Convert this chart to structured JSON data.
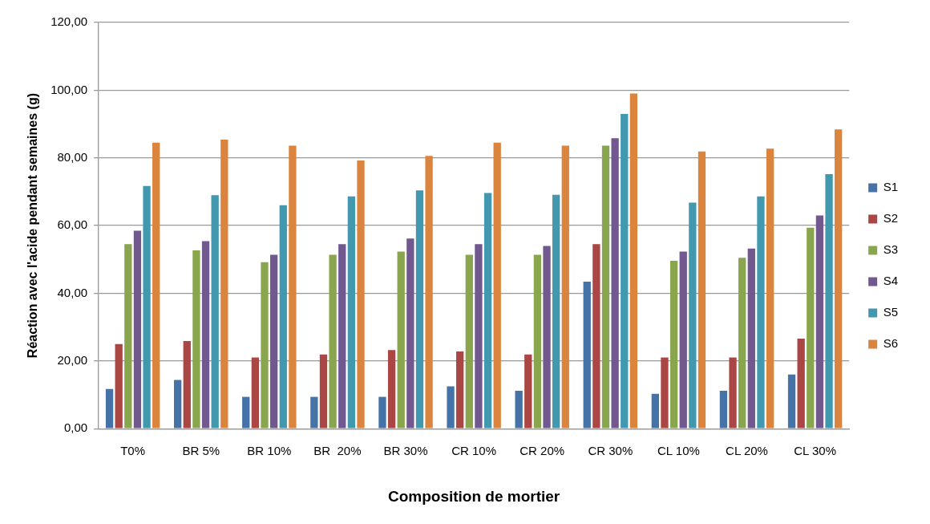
{
  "chart_data": {
    "type": "bar",
    "xlabel": "Composition de mortier",
    "ylabel": "Réaction avec l'acide pendant semaines (g)",
    "categories": [
      "T0%",
      "BR 5%",
      "BR 10%",
      "BR  20%",
      "BR 30%",
      "CR 10%",
      "CR 20%",
      "CR 30%",
      "CL 10%",
      "CL 20%",
      "CL 30%"
    ],
    "series": [
      {
        "name": "S1",
        "color": "#4572a7",
        "values": [
          11.7,
          14.4,
          9.4,
          9.4,
          9.4,
          12.5,
          11.2,
          43.4,
          10.3,
          11.2,
          16.0
        ]
      },
      {
        "name": "S2",
        "color": "#aa4643",
        "values": [
          25.0,
          25.9,
          21.0,
          21.9,
          23.2,
          22.8,
          21.9,
          54.5,
          21.0,
          21.0,
          26.6
        ]
      },
      {
        "name": "S3",
        "color": "#89a54e",
        "values": [
          54.5,
          52.7,
          49.2,
          51.4,
          52.3,
          51.4,
          51.4,
          83.6,
          49.6,
          50.5,
          59.4
        ]
      },
      {
        "name": "S4",
        "color": "#71588f",
        "values": [
          58.5,
          55.4,
          51.4,
          54.5,
          56.2,
          54.5,
          54.0,
          85.8,
          52.3,
          53.2,
          63.0
        ]
      },
      {
        "name": "S5",
        "color": "#4198af",
        "values": [
          71.7,
          69.0,
          66.0,
          68.6,
          70.4,
          69.6,
          69.1,
          93.0,
          66.8,
          68.6,
          75.2
        ]
      },
      {
        "name": "S6",
        "color": "#db843d",
        "values": [
          84.5,
          85.4,
          83.6,
          79.2,
          80.6,
          84.5,
          83.6,
          99.0,
          81.9,
          82.7,
          88.4
        ]
      }
    ],
    "ylim": [
      0,
      120
    ],
    "yticks": [
      {
        "value": 0,
        "label": "0,00"
      },
      {
        "value": 20,
        "label": "20,00"
      },
      {
        "value": 40,
        "label": "40,00"
      },
      {
        "value": 60,
        "label": "60,00"
      },
      {
        "value": 80,
        "label": "80,00"
      },
      {
        "value": 100,
        "label": "100,00"
      },
      {
        "value": 120,
        "label": "120,00"
      }
    ],
    "grid": "y",
    "legend": "right"
  }
}
